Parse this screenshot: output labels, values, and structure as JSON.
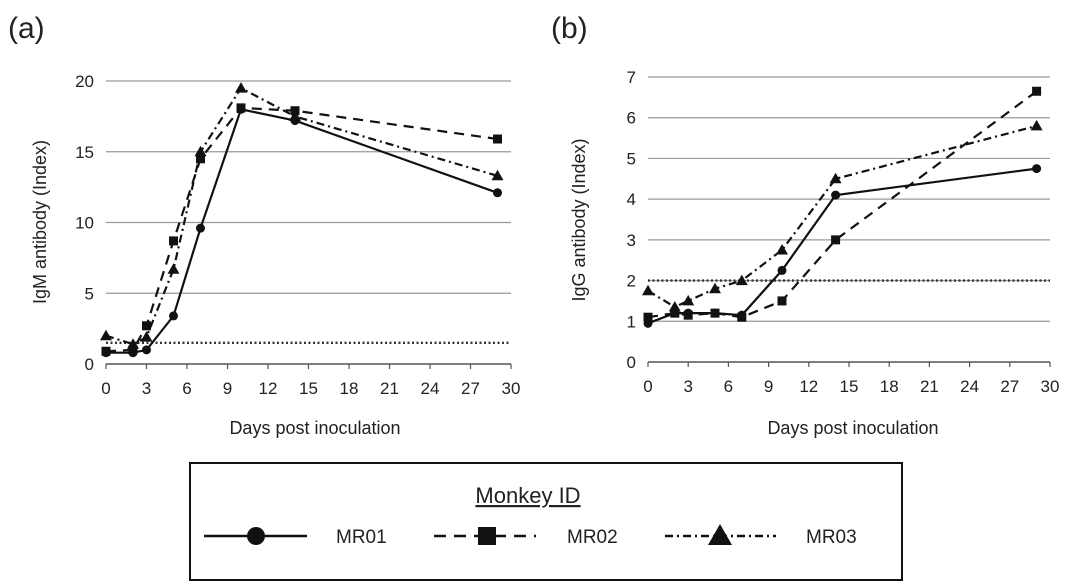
{
  "chart_data": [
    {
      "panel": "(a)",
      "type": "line",
      "title": "",
      "xlabel": "Days post inoculation",
      "ylabel": "IgM antibody (Index)",
      "xlim": [
        0,
        30
      ],
      "ylim": [
        0,
        20
      ],
      "x_ticks": [
        0,
        3,
        6,
        9,
        12,
        15,
        18,
        21,
        24,
        27,
        30
      ],
      "y_ticks": [
        0,
        5,
        10,
        15,
        20
      ],
      "grid": "horizontal",
      "cutoff": 1.5,
      "series": [
        {
          "name": "MR01",
          "marker": "circle",
          "dash": "solid",
          "x": [
            0,
            2,
            3,
            5,
            7,
            10,
            14,
            29
          ],
          "y": [
            0.8,
            0.8,
            1.0,
            3.4,
            9.6,
            18.0,
            17.2,
            12.1
          ]
        },
        {
          "name": "MR02",
          "marker": "square",
          "dash": "dashed",
          "x": [
            0,
            2,
            3,
            5,
            7,
            10,
            14,
            29
          ],
          "y": [
            0.9,
            1.0,
            2.7,
            8.7,
            14.5,
            18.1,
            17.9,
            15.9
          ]
        },
        {
          "name": "MR03",
          "marker": "triangle",
          "dash": "dotdash",
          "x": [
            0,
            2,
            3,
            5,
            7,
            10,
            14,
            29
          ],
          "y": [
            2.0,
            1.4,
            1.9,
            6.7,
            15.0,
            19.5,
            17.5,
            13.3
          ]
        }
      ]
    },
    {
      "panel": "(b)",
      "type": "line",
      "title": "",
      "xlabel": "Days post inoculation",
      "ylabel": "IgG antibody (Index)",
      "xlim": [
        0,
        30
      ],
      "ylim": [
        0,
        7
      ],
      "x_ticks": [
        0,
        3,
        6,
        9,
        12,
        15,
        18,
        21,
        24,
        27,
        30
      ],
      "y_ticks": [
        0,
        1,
        2,
        3,
        4,
        5,
        6,
        7
      ],
      "grid": "horizontal",
      "cutoff": 2.0,
      "series": [
        {
          "name": "MR01",
          "marker": "circle",
          "dash": "solid",
          "x": [
            0,
            2,
            3,
            5,
            7,
            10,
            14,
            29
          ],
          "y": [
            0.95,
            1.2,
            1.2,
            1.2,
            1.15,
            2.25,
            4.1,
            4.75
          ]
        },
        {
          "name": "MR02",
          "marker": "square",
          "dash": "dashed",
          "x": [
            0,
            2,
            3,
            5,
            7,
            10,
            14,
            29
          ],
          "y": [
            1.1,
            1.2,
            1.15,
            1.2,
            1.1,
            1.5,
            3.0,
            6.65
          ]
        },
        {
          "name": "MR03",
          "marker": "triangle",
          "dash": "dotdash",
          "x": [
            0,
            2,
            3,
            5,
            7,
            10,
            14,
            29
          ],
          "y": [
            1.75,
            1.35,
            1.5,
            1.8,
            2.0,
            2.75,
            4.5,
            5.8
          ]
        }
      ]
    }
  ],
  "legend": {
    "title": "Monkey ID",
    "items": [
      "MR01",
      "MR02",
      "MR03"
    ]
  }
}
